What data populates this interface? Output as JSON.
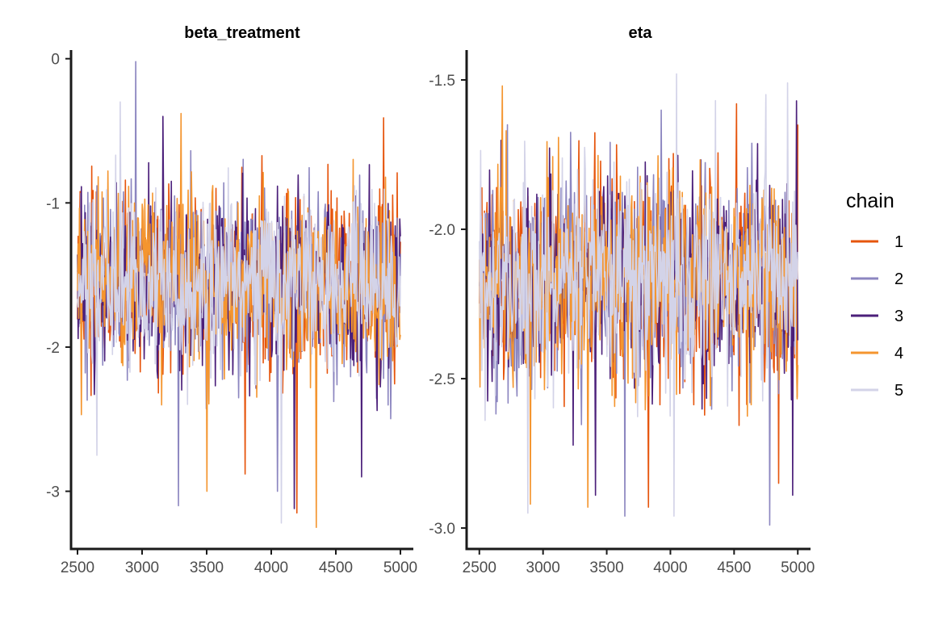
{
  "chart_data": [
    {
      "type": "line",
      "title": "beta_treatment",
      "xlabel": "",
      "ylabel": "",
      "xlim": [
        2450,
        5100
      ],
      "ylim": [
        -3.4,
        0.06
      ],
      "x_range": [
        2500,
        5000
      ],
      "x_ticks": [
        2500,
        3000,
        3500,
        4000,
        4500,
        5000
      ],
      "x_tick_labels": [
        "2500",
        "3000",
        "3500",
        "4000",
        "4500",
        "5000"
      ],
      "y_ticks": [
        0,
        -1,
        -2,
        -3
      ],
      "y_tick_labels": [
        "0",
        "-1",
        "-2",
        "-3"
      ],
      "series": [
        {
          "name": "1",
          "center": -1.55,
          "spread": 0.3,
          "extremes": [
            [
              4870,
              -0.41
            ],
            [
              4200,
              -3.15
            ],
            [
              3800,
              -2.88
            ]
          ]
        },
        {
          "name": "2",
          "center": -1.55,
          "spread": 0.3,
          "extremes": [
            [
              2950,
              -0.02
            ],
            [
              3280,
              -3.1
            ],
            [
              4050,
              -3.0
            ]
          ]
        },
        {
          "name": "3",
          "center": -1.55,
          "spread": 0.3,
          "extremes": [
            [
              3160,
              -0.4
            ],
            [
              4180,
              -3.12
            ],
            [
              4700,
              -2.9
            ]
          ]
        },
        {
          "name": "4",
          "center": -1.55,
          "spread": 0.3,
          "extremes": [
            [
              3300,
              -0.38
            ],
            [
              4350,
              -3.25
            ],
            [
              3500,
              -3.0
            ]
          ]
        },
        {
          "name": "5",
          "center": -1.55,
          "spread": 0.3,
          "extremes": [
            [
              2830,
              -0.3
            ],
            [
              4080,
              -3.22
            ],
            [
              2650,
              -2.75
            ]
          ]
        }
      ],
      "grid": false,
      "legend": "right"
    },
    {
      "type": "line",
      "title": "eta",
      "xlabel": "",
      "ylabel": "",
      "xlim": [
        2400,
        5100
      ],
      "ylim": [
        -3.07,
        -1.4
      ],
      "x_range": [
        2500,
        5000
      ],
      "x_ticks": [
        2500,
        3000,
        3500,
        4000,
        4500,
        5000
      ],
      "x_tick_labels": [
        "2500",
        "3000",
        "3500",
        "4000",
        "4500",
        "5000"
      ],
      "y_ticks": [
        -1.5,
        -2.0,
        -2.5,
        -3.0
      ],
      "y_tick_labels": [
        "-1.5",
        "-2.0",
        "-2.5",
        "-3.0"
      ],
      "series": [
        {
          "name": "1",
          "center": -2.17,
          "spread": 0.17,
          "extremes": [
            [
              4520,
              -1.58
            ],
            [
              3830,
              -2.93
            ],
            [
              4850,
              -2.85
            ]
          ]
        },
        {
          "name": "2",
          "center": -2.17,
          "spread": 0.17,
          "extremes": [
            [
              4780,
              -2.99
            ],
            [
              3640,
              -2.96
            ],
            [
              2720,
              -1.65
            ]
          ]
        },
        {
          "name": "3",
          "center": -2.17,
          "spread": 0.17,
          "extremes": [
            [
              4990,
              -1.57
            ],
            [
              3410,
              -2.89
            ],
            [
              4960,
              -2.89
            ]
          ]
        },
        {
          "name": "4",
          "center": -2.17,
          "spread": 0.17,
          "extremes": [
            [
              2680,
              -1.52
            ],
            [
              3350,
              -2.93
            ],
            [
              2900,
              -2.92
            ]
          ]
        },
        {
          "name": "5",
          "center": -2.17,
          "spread": 0.17,
          "extremes": [
            [
              4050,
              -1.48
            ],
            [
              4030,
              -2.96
            ],
            [
              2880,
              -2.95
            ],
            [
              4920,
              -1.51
            ]
          ]
        }
      ],
      "grid": false,
      "legend": "right"
    }
  ],
  "legend": {
    "title": "chain",
    "items": [
      {
        "label": "1",
        "color": "#e6550d"
      },
      {
        "label": "2",
        "color": "#8c86c0"
      },
      {
        "label": "3",
        "color": "#4b1f7a"
      },
      {
        "label": "4",
        "color": "#f4952f"
      },
      {
        "label": "5",
        "color": "#d3d3e8"
      }
    ]
  },
  "colors": {
    "chain_1": "#e6550d",
    "chain_2": "#8c86c0",
    "chain_3": "#4b1f7a",
    "chain_4": "#f4952f",
    "chain_5": "#d3d3e8",
    "axis": "#1a1a1a",
    "tick_text": "#4d4d4d"
  }
}
